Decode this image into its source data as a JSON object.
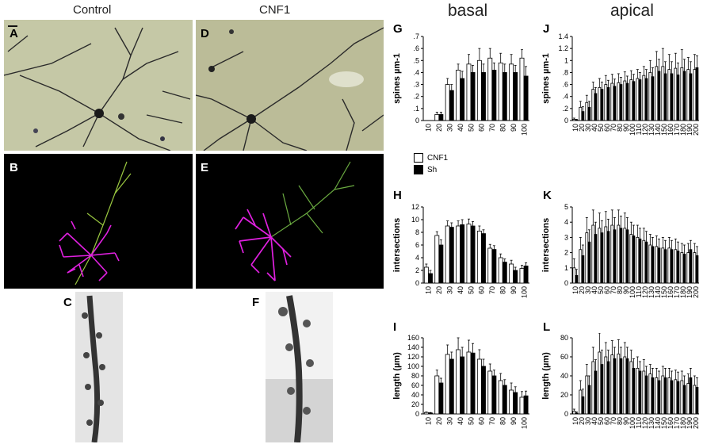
{
  "column_titles": {
    "control": "Control",
    "cnf1": "CNF1",
    "basal": "basal",
    "apical": "apical"
  },
  "panel_labels": {
    "A": "A",
    "B": "B",
    "C": "C",
    "D": "D",
    "E": "E",
    "F": "F",
    "G": "G",
    "H": "H",
    "I": "I",
    "J": "J",
    "K": "K",
    "L": "L"
  },
  "legend": {
    "cnf1": "CNF1",
    "sh": "Sh"
  },
  "colors": {
    "cnf1_fill": "#ffffff",
    "sh_fill": "#000000",
    "dendrite_magenta": "#e020e0",
    "dendrite_green": "#5aa83c",
    "micro_bg": "#c8c9a4"
  },
  "chart_data": [
    {
      "id": "G",
      "type": "bar",
      "ylabel": "spines µm-1",
      "ylim": [
        0,
        0.7
      ],
      "yticks": [
        "0",
        ".1",
        ".2",
        ".3",
        ".4",
        ".5",
        ".6",
        ".7"
      ],
      "categories": [
        "10",
        "20",
        "30",
        "40",
        "50",
        "60",
        "70",
        "80",
        "90",
        "100"
      ],
      "series": [
        {
          "name": "CNF1",
          "values": [
            0,
            0.05,
            0.3,
            0.42,
            0.47,
            0.5,
            0.52,
            0.48,
            0.47,
            0.52
          ],
          "errors": [
            0,
            0.02,
            0.05,
            0.05,
            0.08,
            0.1,
            0.08,
            0.08,
            0.08,
            0.07
          ]
        },
        {
          "name": "Sh",
          "values": [
            0,
            0.05,
            0.25,
            0.35,
            0.4,
            0.4,
            0.42,
            0.4,
            0.4,
            0.37
          ],
          "errors": [
            0,
            0.02,
            0.05,
            0.06,
            0.06,
            0.07,
            0.06,
            0.07,
            0.06,
            0.08
          ]
        }
      ]
    },
    {
      "id": "H",
      "type": "bar",
      "ylabel": "intersections",
      "ylim": [
        0,
        12
      ],
      "yticks": [
        "0",
        "2",
        "4",
        "6",
        "8",
        "10",
        "12"
      ],
      "categories": [
        "10",
        "20",
        "30",
        "40",
        "50",
        "60",
        "70",
        "80",
        "90",
        "100"
      ],
      "series": [
        {
          "name": "CNF1",
          "values": [
            2.5,
            7.5,
            9,
            9,
            9.3,
            8.2,
            5.5,
            4,
            3,
            2.3
          ],
          "errors": [
            0.5,
            0.6,
            0.8,
            0.8,
            0.8,
            0.8,
            0.6,
            0.6,
            0.6,
            0.5
          ]
        },
        {
          "name": "Sh",
          "values": [
            1.5,
            6,
            8.8,
            9.2,
            9,
            7.8,
            5.3,
            3.3,
            2,
            2.7
          ],
          "errors": [
            0.5,
            0.8,
            0.7,
            0.8,
            0.7,
            0.6,
            0.6,
            0.5,
            0.5,
            0.5
          ]
        }
      ]
    },
    {
      "id": "I",
      "type": "bar",
      "ylabel": "length (µm)",
      "ylim": [
        0,
        160
      ],
      "yticks": [
        "0",
        "20",
        "40",
        "60",
        "80",
        "100",
        "120",
        "140",
        "160"
      ],
      "categories": [
        "10",
        "20",
        "30",
        "40",
        "50",
        "60",
        "70",
        "80",
        "90",
        "100"
      ],
      "series": [
        {
          "name": "CNF1",
          "values": [
            3,
            80,
            125,
            135,
            130,
            115,
            90,
            70,
            50,
            35
          ],
          "errors": [
            1,
            12,
            20,
            25,
            25,
            20,
            15,
            15,
            15,
            12
          ]
        },
        {
          "name": "Sh",
          "values": [
            2,
            65,
            115,
            120,
            128,
            100,
            80,
            60,
            45,
            38
          ],
          "errors": [
            1,
            10,
            15,
            20,
            20,
            15,
            12,
            12,
            12,
            10
          ]
        }
      ]
    },
    {
      "id": "J",
      "type": "bar",
      "ylabel": "spines µm-1",
      "ylim": [
        0,
        1.4
      ],
      "yticks": [
        "0",
        ".2",
        ".4",
        ".6",
        ".8",
        "1",
        "1.2",
        "1.4"
      ],
      "categories": [
        "10",
        "20",
        "30",
        "40",
        "50",
        "60",
        "70",
        "80",
        "90",
        "100",
        "110",
        "120",
        "130",
        "140",
        "150",
        "160",
        "170",
        "180",
        "190",
        "200"
      ],
      "series": [
        {
          "name": "CNF1",
          "values": [
            0.02,
            0.22,
            0.3,
            0.52,
            0.55,
            0.6,
            0.62,
            0.63,
            0.66,
            0.68,
            0.7,
            0.75,
            0.8,
            0.9,
            0.9,
            0.85,
            0.87,
            0.88,
            0.85,
            0.85
          ],
          "errors": [
            0.02,
            0.1,
            0.12,
            0.12,
            0.15,
            0.15,
            0.15,
            0.15,
            0.15,
            0.15,
            0.15,
            0.15,
            0.2,
            0.25,
            0.3,
            0.25,
            0.25,
            0.3,
            0.2,
            0.25
          ]
        },
        {
          "name": "Sh",
          "values": [
            0.01,
            0.15,
            0.22,
            0.45,
            0.52,
            0.55,
            0.57,
            0.6,
            0.62,
            0.65,
            0.68,
            0.7,
            0.73,
            0.82,
            0.78,
            0.78,
            0.76,
            0.82,
            0.78,
            0.88
          ],
          "errors": [
            0.01,
            0.08,
            0.1,
            0.1,
            0.12,
            0.12,
            0.12,
            0.12,
            0.12,
            0.12,
            0.12,
            0.15,
            0.15,
            0.2,
            0.2,
            0.2,
            0.2,
            0.2,
            0.2,
            0.2
          ]
        }
      ]
    },
    {
      "id": "K",
      "type": "bar",
      "ylabel": "intersections",
      "ylim": [
        0,
        5
      ],
      "yticks": [
        "0",
        "1",
        "2",
        "3",
        "4",
        "5"
      ],
      "categories": [
        "10",
        "20",
        "30",
        "40",
        "50",
        "60",
        "70",
        "80",
        "90",
        "100",
        "110",
        "120",
        "130",
        "140",
        "150",
        "160",
        "170",
        "180",
        "190",
        "200"
      ],
      "series": [
        {
          "name": "CNF1",
          "values": [
            1,
            2.2,
            3.3,
            3.8,
            3.6,
            3.7,
            3.8,
            3.8,
            3.6,
            3.2,
            3,
            2.8,
            2.5,
            2.4,
            2.3,
            2.3,
            2.2,
            2,
            2,
            2
          ],
          "errors": [
            0.6,
            0.8,
            1,
            1,
            1,
            1,
            1,
            1,
            1,
            0.8,
            0.8,
            0.8,
            0.7,
            0.7,
            0.7,
            0.7,
            0.7,
            0.6,
            0.6,
            0.6
          ]
        },
        {
          "name": "Sh",
          "values": [
            0.5,
            1.8,
            2.7,
            3.2,
            3.3,
            3.4,
            3.5,
            3.6,
            3.5,
            3.1,
            2.9,
            2.7,
            2.4,
            2.3,
            2.2,
            2.2,
            2.1,
            1.9,
            2.2,
            1.8
          ],
          "errors": [
            0.4,
            0.7,
            0.8,
            0.8,
            0.8,
            0.8,
            0.8,
            0.8,
            0.8,
            0.7,
            0.7,
            0.7,
            0.6,
            0.6,
            0.6,
            0.6,
            0.6,
            0.6,
            0.6,
            0.6
          ]
        }
      ]
    },
    {
      "id": "L",
      "type": "bar",
      "ylabel": "length (µm)",
      "ylim": [
        0,
        80
      ],
      "yticks": [
        "0",
        "20",
        "40",
        "60",
        "80"
      ],
      "categories": [
        "10",
        "20",
        "30",
        "40",
        "50",
        "60",
        "70",
        "80",
        "90",
        "100",
        "110",
        "120",
        "130",
        "140",
        "150",
        "160",
        "170",
        "180",
        "190",
        "200"
      ],
      "series": [
        {
          "name": "CNF1",
          "values": [
            3,
            25,
            40,
            55,
            65,
            60,
            62,
            63,
            60,
            55,
            48,
            45,
            42,
            38,
            40,
            38,
            36,
            35,
            32,
            30
          ],
          "errors": [
            2,
            10,
            12,
            15,
            20,
            15,
            15,
            15,
            15,
            12,
            12,
            12,
            10,
            10,
            10,
            10,
            10,
            10,
            10,
            10
          ]
        },
        {
          "name": "Sh",
          "values": [
            1,
            18,
            30,
            45,
            52,
            55,
            58,
            58,
            58,
            48,
            45,
            40,
            38,
            35,
            38,
            35,
            34,
            30,
            38,
            28
          ],
          "errors": [
            1,
            8,
            10,
            12,
            15,
            12,
            12,
            12,
            12,
            10,
            10,
            10,
            10,
            10,
            10,
            10,
            10,
            10,
            10,
            10
          ]
        }
      ]
    }
  ]
}
